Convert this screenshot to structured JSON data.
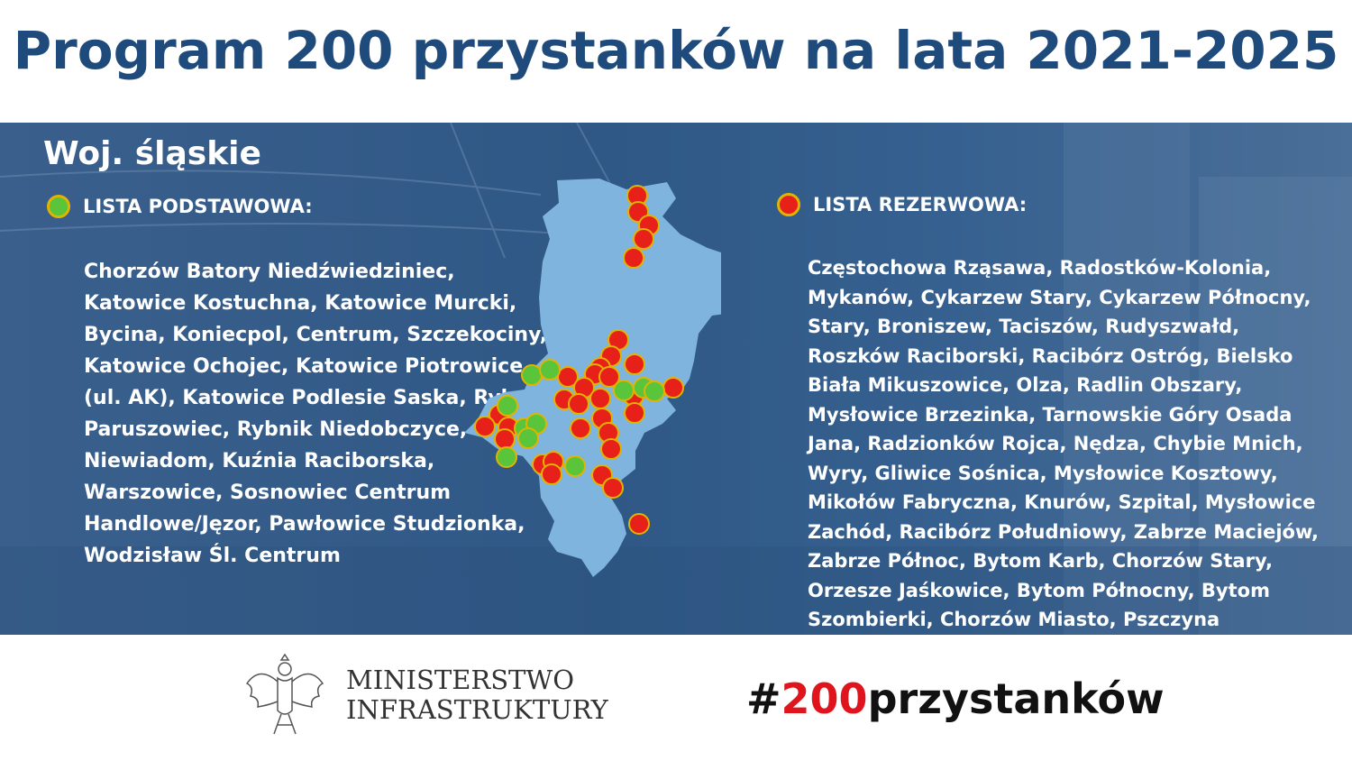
{
  "title": "Program 200 przystanków na lata 2021-2025",
  "region": "Woj. śląskie",
  "legend_basic": {
    "label": "LISTA PODSTAWOWA:",
    "color": "#5ac43a"
  },
  "legend_reserve": {
    "label": "LISTA REZERWOWA:",
    "color": "#e8201a"
  },
  "list_basic": "Chorzów Batory Niedźwiedziniec, Katowice Kostuchna, Katowice Murcki, Bycina, Koniecpol, Centrum, Szczekociny, Katowice Ochojec, Katowice Piotrowice (ul. AK), Katowice Podlesie Saska, Rybnik Paruszowiec, Rybnik Niedobczyce, Rybnik Niewiadom, Kuźnia Raciborska, Warszowice, Sosnowiec Centrum Handlowe/Jęzor, Pawłowice Studzionka, Wodzisław Śl. Centrum",
  "list_reserve": "Częstochowa Rząsawa, Radostków-Kolonia, Mykanów, Cykarzew Stary, Cykarzew Północny, Stary, Broniszew, Taciszów, Rudyszwałd, Roszków Raciborski, Racibórz Ostróg, Bielsko Biała Mikuszowice, Olza, Radlin Obszary, Mysłowice Brzezinka, Tarnowskie Góry Osada Jana, Radzionków Rojca, Nędza, Chybie Mnich, Wyry, Gliwice Sośnica, Mysłowice Kosztowy, Mikołów Fabryczna, Knurów, Szpital, Mysłowice Zachód, Racibórz Południowy, Zabrze Maciejów, Zabrze Północ, Bytom Karb, Chorzów Stary, Orzesze Jaśkowice, Bytom Północny, Bytom Szombierki, Chorzów Miasto, Pszczyna Czarków, Suszec",
  "footer": {
    "ministry_line1": "MINISTERSTWO",
    "ministry_line2": "INFRASTRUKTURY",
    "hashtag_prefix": "#",
    "hashtag_number": "200",
    "hashtag_word": "przystanków"
  },
  "colors": {
    "title": "#1f4a7c",
    "map_fill": "#7fb4de",
    "basic": "#5ac43a",
    "reserve": "#e8201a",
    "outline": "#e0b400"
  }
}
